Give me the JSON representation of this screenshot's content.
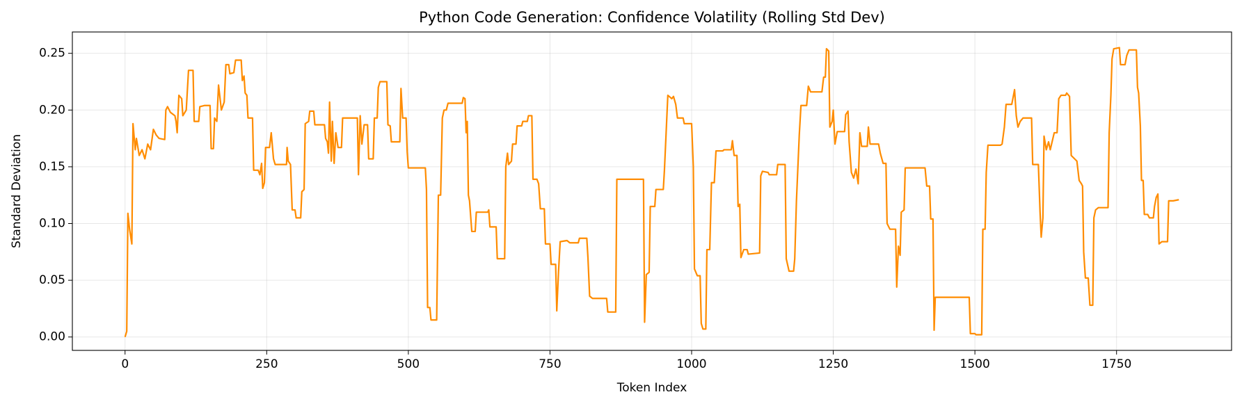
{
  "chart_data": {
    "type": "line",
    "title": "Python Code Generation: Confidence Volatility (Rolling Std Dev)",
    "x_label": "Token Index",
    "y_label": "Standard Deviation",
    "color": "#ff8c00",
    "grid": true,
    "xlim": [
      -93,
      1953
    ],
    "ylim": [
      -0.0118,
      0.2688
    ],
    "xticks": [
      0,
      250,
      500,
      750,
      1000,
      1250,
      1500,
      1750
    ],
    "yticks": [
      {
        "value": 0,
        "label": "0.00"
      },
      0.05,
      {
        "value": 0.1,
        "label": "0.10"
      },
      0.15,
      {
        "value": 0.2,
        "label": "0.20"
      },
      0.25
    ],
    "x": [
      0,
      3,
      5,
      8,
      12,
      14,
      18,
      20,
      25,
      30,
      35,
      40,
      45,
      50,
      55,
      60,
      70,
      72,
      75,
      80,
      88,
      90,
      92,
      95,
      100,
      102,
      108,
      112,
      120,
      122,
      130,
      132,
      140,
      150,
      152,
      156,
      158,
      162,
      165,
      170,
      175,
      178,
      183,
      185,
      192,
      195,
      205,
      207,
      210,
      212,
      215,
      217,
      225,
      227,
      235,
      238,
      241,
      243,
      246,
      248,
      255,
      258,
      262,
      265,
      285,
      286,
      288,
      292,
      295,
      300,
      302,
      310,
      312,
      316,
      318,
      324,
      326,
      333,
      335,
      352,
      354,
      357,
      359,
      361,
      364,
      366,
      369,
      372,
      376,
      382,
      384,
      410,
      412,
      415,
      418,
      422,
      428,
      430,
      438,
      440,
      445,
      447,
      450,
      462,
      464,
      468,
      470,
      485,
      487,
      490,
      496,
      498,
      500,
      530,
      532,
      534,
      538,
      540,
      550,
      553,
      557,
      560,
      563,
      567,
      570,
      595,
      597,
      600,
      602,
      604,
      606,
      608,
      612,
      618,
      620,
      640,
      642,
      644,
      655,
      657,
      670,
      672,
      675,
      677,
      682,
      684,
      690,
      692,
      700,
      702,
      710,
      712,
      718,
      720,
      727,
      730,
      733,
      740,
      742,
      750,
      752,
      760,
      762,
      765,
      768,
      780,
      785,
      800,
      802,
      815,
      817,
      820,
      825,
      850,
      852,
      866,
      868,
      915,
      917,
      920,
      925,
      927,
      935,
      937,
      950,
      952,
      955,
      958,
      965,
      968,
      972,
      975,
      985,
      987,
      1000,
      1003,
      1005,
      1010,
      1015,
      1017,
      1020,
      1025,
      1027,
      1032,
      1035,
      1040,
      1043,
      1055,
      1057,
      1070,
      1072,
      1075,
      1080,
      1082,
      1085,
      1087,
      1092,
      1098,
      1100,
      1120,
      1122,
      1125,
      1135,
      1137,
      1150,
      1152,
      1165,
      1167,
      1172,
      1180,
      1182,
      1185,
      1190,
      1193,
      1203,
      1206,
      1210,
      1230,
      1233,
      1236,
      1238,
      1242,
      1244,
      1248,
      1250,
      1253,
      1257,
      1270,
      1272,
      1276,
      1278,
      1282,
      1286,
      1290,
      1294,
      1297,
      1300,
      1310,
      1312,
      1315,
      1330,
      1333,
      1338,
      1343,
      1345,
      1350,
      1360,
      1362,
      1365,
      1368,
      1370,
      1375,
      1377,
      1412,
      1415,
      1420,
      1422,
      1426,
      1428,
      1430,
      1490,
      1492,
      1500,
      1502,
      1512,
      1514,
      1518,
      1520,
      1523,
      1545,
      1548,
      1552,
      1555,
      1565,
      1567,
      1570,
      1573,
      1576,
      1580,
      1585,
      1600,
      1602,
      1612,
      1615,
      1617,
      1620,
      1622,
      1626,
      1630,
      1633,
      1640,
      1645,
      1648,
      1652,
      1660,
      1662,
      1667,
      1670,
      1680,
      1684,
      1688,
      1690,
      1692,
      1695,
      1700,
      1703,
      1708,
      1710,
      1713,
      1718,
      1735,
      1737,
      1740,
      1742,
      1745,
      1755,
      1757,
      1765,
      1768,
      1772,
      1785,
      1787,
      1789,
      1792,
      1794,
      1797,
      1799,
      1805,
      1808,
      1815,
      1817,
      1820,
      1823,
      1825,
      1830,
      1840,
      1842,
      1850,
      1860
    ],
    "values": [
      0,
      0.005,
      0.109,
      0.095,
      0.082,
      0.188,
      0.165,
      0.175,
      0.16,
      0.165,
      0.157,
      0.17,
      0.165,
      0.183,
      0.178,
      0.175,
      0.174,
      0.2,
      0.203,
      0.198,
      0.195,
      0.19,
      0.18,
      0.213,
      0.21,
      0.195,
      0.2,
      0.235,
      0.235,
      0.19,
      0.19,
      0.203,
      0.204,
      0.204,
      0.166,
      0.166,
      0.193,
      0.19,
      0.222,
      0.2,
      0.207,
      0.24,
      0.24,
      0.232,
      0.233,
      0.244,
      0.244,
      0.226,
      0.23,
      0.215,
      0.213,
      0.193,
      0.193,
      0.147,
      0.147,
      0.143,
      0.153,
      0.131,
      0.136,
      0.167,
      0.167,
      0.18,
      0.157,
      0.152,
      0.152,
      0.167,
      0.155,
      0.152,
      0.112,
      0.112,
      0.105,
      0.105,
      0.128,
      0.13,
      0.188,
      0.19,
      0.199,
      0.199,
      0.187,
      0.187,
      0.175,
      0.172,
      0.162,
      0.207,
      0.155,
      0.19,
      0.153,
      0.18,
      0.167,
      0.167,
      0.193,
      0.193,
      0.143,
      0.195,
      0.17,
      0.187,
      0.187,
      0.157,
      0.157,
      0.193,
      0.193,
      0.22,
      0.225,
      0.225,
      0.187,
      0.186,
      0.172,
      0.172,
      0.219,
      0.193,
      0.193,
      0.163,
      0.149,
      0.149,
      0.13,
      0.026,
      0.026,
      0.015,
      0.015,
      0.125,
      0.125,
      0.193,
      0.2,
      0.2,
      0.206,
      0.206,
      0.211,
      0.21,
      0.18,
      0.19,
      0.125,
      0.12,
      0.093,
      0.093,
      0.11,
      0.11,
      0.112,
      0.097,
      0.097,
      0.069,
      0.069,
      0.15,
      0.162,
      0.152,
      0.155,
      0.17,
      0.17,
      0.186,
      0.186,
      0.19,
      0.19,
      0.195,
      0.195,
      0.139,
      0.139,
      0.135,
      0.113,
      0.113,
      0.082,
      0.082,
      0.064,
      0.064,
      0.023,
      0.057,
      0.084,
      0.085,
      0.083,
      0.083,
      0.087,
      0.087,
      0.07,
      0.036,
      0.034,
      0.034,
      0.022,
      0.022,
      0.139,
      0.139,
      0.013,
      0.055,
      0.057,
      0.115,
      0.115,
      0.13,
      0.13,
      0.147,
      0.18,
      0.213,
      0.21,
      0.212,
      0.205,
      0.193,
      0.193,
      0.188,
      0.188,
      0.15,
      0.06,
      0.054,
      0.054,
      0.012,
      0.007,
      0.007,
      0.077,
      0.077,
      0.136,
      0.136,
      0.164,
      0.164,
      0.165,
      0.165,
      0.173,
      0.16,
      0.16,
      0.115,
      0.117,
      0.07,
      0.077,
      0.077,
      0.073,
      0.074,
      0.142,
      0.146,
      0.145,
      0.143,
      0.143,
      0.152,
      0.152,
      0.069,
      0.058,
      0.058,
      0.069,
      0.12,
      0.178,
      0.204,
      0.204,
      0.221,
      0.216,
      0.216,
      0.229,
      0.229,
      0.254,
      0.252,
      0.185,
      0.19,
      0.2,
      0.17,
      0.181,
      0.181,
      0.196,
      0.199,
      0.172,
      0.145,
      0.14,
      0.148,
      0.135,
      0.18,
      0.168,
      0.168,
      0.185,
      0.17,
      0.17,
      0.162,
      0.153,
      0.153,
      0.1,
      0.095,
      0.095,
      0.044,
      0.08,
      0.072,
      0.11,
      0.112,
      0.149,
      0.149,
      0.133,
      0.133,
      0.104,
      0.104,
      0.006,
      0.035,
      0.035,
      0.003,
      0.003,
      0.002,
      0.002,
      0.095,
      0.095,
      0.145,
      0.169,
      0.169,
      0.17,
      0.185,
      0.205,
      0.205,
      0.21,
      0.218,
      0.195,
      0.185,
      0.19,
      0.193,
      0.193,
      0.152,
      0.152,
      0.11,
      0.088,
      0.105,
      0.177,
      0.165,
      0.172,
      0.165,
      0.18,
      0.18,
      0.21,
      0.213,
      0.213,
      0.215,
      0.212,
      0.16,
      0.155,
      0.138,
      0.135,
      0.133,
      0.075,
      0.052,
      0.052,
      0.028,
      0.028,
      0.105,
      0.112,
      0.114,
      0.114,
      0.18,
      0.213,
      0.245,
      0.254,
      0.255,
      0.24,
      0.24,
      0.248,
      0.253,
      0.253,
      0.22,
      0.215,
      0.186,
      0.138,
      0.138,
      0.108,
      0.108,
      0.105,
      0.105,
      0.115,
      0.123,
      0.126,
      0.082,
      0.084,
      0.084,
      0.12,
      0.12,
      0.121
    ]
  }
}
